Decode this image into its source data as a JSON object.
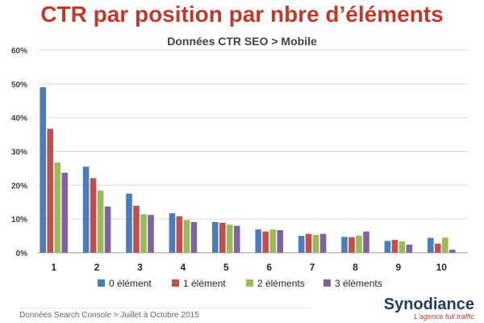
{
  "page": {
    "title": "CTR par position par nbre d’éléments",
    "footer_source": "Données Search Console > Juillet à Octobre 2015",
    "brand_name": "Synodiance",
    "brand_tagline": "L'agence full traffic"
  },
  "chart_data": {
    "type": "bar",
    "title": "Données CTR SEO > Mobile",
    "xlabel": "",
    "ylabel": "",
    "categories": [
      "1",
      "2",
      "3",
      "4",
      "5",
      "6",
      "7",
      "8",
      "9",
      "10"
    ],
    "ylim": [
      0,
      60
    ],
    "yticks": [
      0,
      10,
      20,
      30,
      40,
      50,
      60
    ],
    "ytick_labels": [
      "0%",
      "10%",
      "20%",
      "30%",
      "40%",
      "50%",
      "60%"
    ],
    "grid": true,
    "legend_position": "bottom",
    "series": [
      {
        "name": "0 élément",
        "color": "#4a7ebb",
        "values": [
          49,
          25.5,
          17.5,
          11.7,
          9.1,
          6.9,
          5.0,
          4.7,
          3.5,
          4.4
        ]
      },
      {
        "name": "1 élément",
        "color": "#c0504d",
        "values": [
          36.7,
          22.1,
          13.9,
          10.8,
          8.9,
          6.3,
          5.6,
          4.6,
          3.8,
          2.7
        ]
      },
      {
        "name": "2 éléments",
        "color": "#9bbb59",
        "values": [
          26.7,
          18.4,
          11.4,
          9.7,
          8.3,
          6.9,
          5.3,
          5.1,
          3.4,
          4.5
        ]
      },
      {
        "name": "3 éléments",
        "color": "#8064a2",
        "values": [
          23.7,
          13.7,
          11.2,
          9.1,
          8.0,
          6.7,
          5.6,
          6.3,
          2.4,
          0.9
        ]
      }
    ]
  }
}
